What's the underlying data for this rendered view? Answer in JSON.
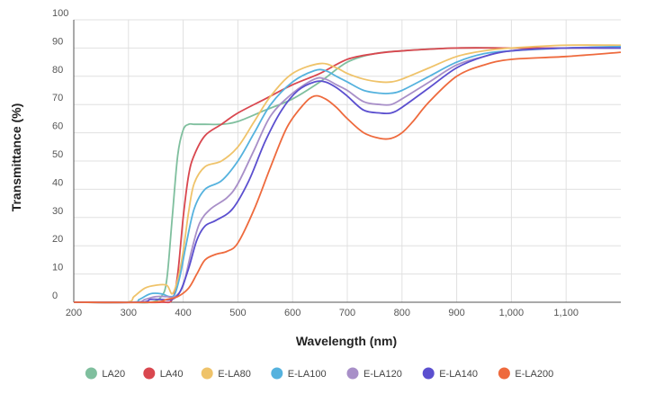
{
  "chart_data": {
    "type": "line",
    "title": "",
    "xlabel": "Wavelength (nm)",
    "ylabel": "Transmittance (%)",
    "xlim": [
      200,
      1200
    ],
    "ylim": [
      0,
      100
    ],
    "x_ticks": [
      200,
      300,
      400,
      500,
      600,
      700,
      800,
      900,
      1000,
      1100
    ],
    "x_tick_labels": [
      "200",
      "300",
      "400",
      "500",
      "600",
      "700",
      "800",
      "900",
      "1,000",
      "1,100"
    ],
    "y_ticks": [
      0,
      10,
      20,
      30,
      40,
      50,
      60,
      70,
      80,
      90,
      100
    ],
    "y_tick_labels": [
      "0",
      "10",
      "20",
      "30",
      "40",
      "50",
      "60",
      "70",
      "80",
      "90",
      "100"
    ],
    "grid": true,
    "legend_position": "bottom",
    "series": [
      {
        "name": "LA20",
        "color": "#7fbf9e",
        "x": [
          200,
          300,
          340,
          360,
          370,
          380,
          390,
          400,
          410,
          420,
          440,
          470,
          500,
          550,
          600,
          650,
          700,
          750,
          800,
          900,
          1000,
          1100,
          1200
        ],
        "y": [
          0,
          0,
          0,
          2,
          8,
          30,
          52,
          61,
          63,
          63,
          63,
          63,
          64,
          68,
          72,
          78,
          85,
          88,
          89,
          90,
          90,
          90,
          90.5
        ]
      },
      {
        "name": "LA40",
        "color": "#d9474f",
        "x": [
          200,
          300,
          360,
          380,
          390,
          400,
          410,
          420,
          440,
          470,
          500,
          550,
          600,
          650,
          700,
          750,
          800,
          900,
          1000,
          1100,
          1200
        ],
        "y": [
          0,
          0,
          0,
          1,
          10,
          30,
          45,
          52,
          59,
          63,
          67,
          72,
          77,
          81,
          86,
          88,
          89,
          90,
          90,
          90,
          90
        ]
      },
      {
        "name": "E-LA80",
        "color": "#efc36a",
        "x": [
          200,
          295,
          310,
          330,
          350,
          370,
          380,
          390,
          400,
          410,
          420,
          440,
          470,
          500,
          530,
          560,
          600,
          650,
          680,
          700,
          730,
          760,
          780,
          800,
          850,
          900,
          950,
          1000,
          1100,
          1200
        ],
        "y": [
          0,
          0,
          2,
          5,
          6,
          6,
          3,
          8,
          18,
          32,
          42,
          48,
          50,
          55,
          64,
          73,
          81,
          84.5,
          83,
          81,
          79,
          78,
          78,
          79,
          83,
          87,
          89,
          90,
          91,
          91
        ]
      },
      {
        "name": "E-LA100",
        "color": "#55b2de",
        "x": [
          200,
          305,
          320,
          340,
          360,
          375,
          385,
          395,
          405,
          420,
          440,
          470,
          500,
          530,
          560,
          600,
          640,
          660,
          680,
          700,
          730,
          760,
          780,
          800,
          850,
          900,
          950,
          1000,
          1100,
          1200
        ],
        "y": [
          0,
          0,
          1,
          3,
          3,
          2,
          3,
          10,
          20,
          33,
          40,
          43,
          50,
          60,
          70,
          78,
          82,
          82,
          80,
          78,
          75,
          74,
          74,
          75,
          80,
          85,
          88,
          89,
          90,
          90.5
        ]
      },
      {
        "name": "E-LA120",
        "color": "#a88fc8",
        "x": [
          200,
          310,
          330,
          350,
          370,
          385,
          400,
          415,
          430,
          450,
          480,
          500,
          530,
          560,
          600,
          640,
          660,
          680,
          700,
          730,
          760,
          780,
          800,
          850,
          900,
          950,
          1000,
          1100,
          1200
        ],
        "y": [
          0,
          0,
          1,
          2,
          2,
          2,
          6,
          18,
          28,
          33,
          37,
          42,
          54,
          66,
          74,
          79,
          79,
          77,
          75,
          71,
          70,
          70,
          72,
          78,
          84,
          87,
          89,
          90,
          90
        ]
      },
      {
        "name": "E-LA140",
        "color": "#5b4fcf",
        "x": [
          200,
          320,
          340,
          360,
          380,
          395,
          410,
          425,
          440,
          460,
          490,
          520,
          550,
          580,
          610,
          640,
          660,
          680,
          700,
          730,
          760,
          780,
          800,
          850,
          900,
          950,
          1000,
          1100,
          1200
        ],
        "y": [
          0,
          0,
          1,
          1,
          1,
          4,
          12,
          22,
          27,
          29,
          33,
          43,
          57,
          68,
          75,
          78,
          78,
          76,
          73,
          68,
          67,
          67,
          69,
          76,
          83,
          87,
          89,
          90,
          90
        ]
      },
      {
        "name": "E-LA200",
        "color": "#ee6a3d",
        "x": [
          200,
          340,
          370,
          390,
          410,
          425,
          440,
          460,
          480,
          500,
          530,
          560,
          590,
          620,
          640,
          660,
          680,
          700,
          730,
          760,
          780,
          800,
          820,
          850,
          900,
          950,
          1000,
          1100,
          1200
        ],
        "y": [
          0,
          0,
          1,
          2,
          5,
          10,
          15,
          17,
          18,
          21,
          33,
          48,
          62,
          70,
          73,
          72,
          69,
          65,
          60,
          58,
          58,
          60,
          64,
          71,
          80,
          84,
          86,
          87,
          88.5
        ]
      }
    ]
  }
}
